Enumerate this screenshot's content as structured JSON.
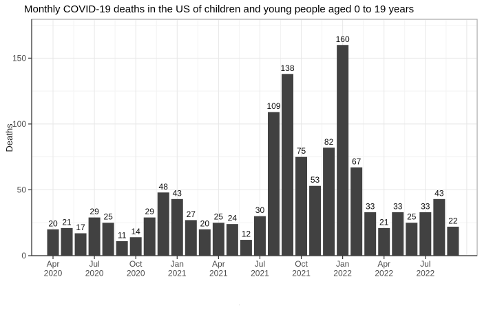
{
  "title": "Monthly COVID-19 deaths in the US of children and young people aged 0 to 19 years",
  "chart_data": {
    "type": "bar",
    "title": "Monthly COVID-19 deaths in the US of children and young people aged 0 to 19 years",
    "xlabel": "",
    "ylabel": "Deaths",
    "categories": [
      "Apr 2020",
      "May 2020",
      "Jun 2020",
      "Jul 2020",
      "Aug 2020",
      "Sep 2020",
      "Oct 2020",
      "Nov 2020",
      "Dec 2020",
      "Jan 2021",
      "Feb 2021",
      "Mar 2021",
      "Apr 2021",
      "May 2021",
      "Jun 2021",
      "Jul 2021",
      "Aug 2021",
      "Sep 2021",
      "Oct 2021",
      "Nov 2021",
      "Dec 2021",
      "Jan 2022",
      "Feb 2022",
      "Mar 2022",
      "Apr 2022",
      "May 2022",
      "Jun 2022",
      "Jul 2022",
      "Aug 2022",
      "Sep 2022"
    ],
    "values": [
      20,
      21,
      17,
      29,
      25,
      11,
      14,
      29,
      48,
      43,
      27,
      20,
      25,
      24,
      12,
      30,
      109,
      138,
      75,
      53,
      82,
      160,
      67,
      33,
      21,
      33,
      25,
      33,
      43,
      22
    ],
    "bar_labels_shown": true,
    "x_ticks": [
      {
        "index": 0,
        "month": "Apr",
        "year": "2020"
      },
      {
        "index": 3,
        "month": "Jul",
        "year": "2020"
      },
      {
        "index": 6,
        "month": "Oct",
        "year": "2020"
      },
      {
        "index": 9,
        "month": "Jan",
        "year": "2021"
      },
      {
        "index": 12,
        "month": "Apr",
        "year": "2021"
      },
      {
        "index": 15,
        "month": "Jul",
        "year": "2021"
      },
      {
        "index": 18,
        "month": "Oct",
        "year": "2021"
      },
      {
        "index": 21,
        "month": "Jan",
        "year": "2022"
      },
      {
        "index": 24,
        "month": "Apr",
        "year": "2022"
      },
      {
        "index": 27,
        "month": "Jul",
        "year": "2022"
      }
    ],
    "y_ticks": [
      0,
      50,
      100,
      150
    ],
    "ylim": [
      0,
      179.5
    ],
    "grid": "major-and-minor",
    "legend": "none",
    "colors": {
      "bar": "#414141",
      "value_label": "#0d0d0d",
      "axis_text": "#4d4d4d",
      "axis_line": "#333333",
      "panel_border": "#a8a8a8",
      "grid_major": "#e7e7e7",
      "grid_minor": "#f3f3f3",
      "background": "#ffffff"
    }
  },
  "footer": {
    "mark": "·"
  }
}
